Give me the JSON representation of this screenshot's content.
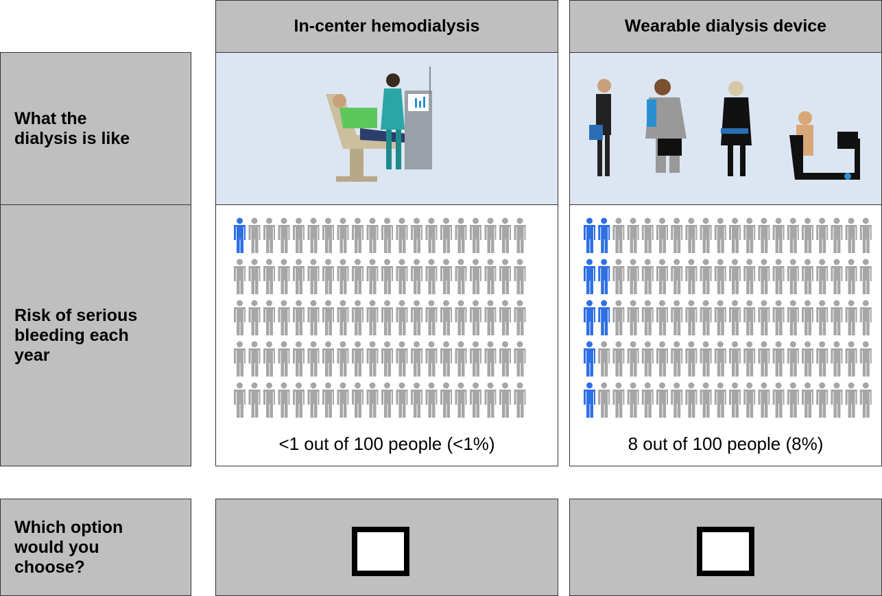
{
  "columns": [
    {
      "header": "In-center hemodialysis",
      "caption": "<1 out of 100 people (<1%)",
      "icon_array": {
        "total": 100,
        "highlighted": 1
      }
    },
    {
      "header": "Wearable dialysis device",
      "caption": "8 out of 100 people (8%)",
      "icon_array": {
        "total": 100,
        "highlighted": 8
      }
    }
  ],
  "rows": [
    {
      "label_lines": [
        "What the",
        "dialysis is like"
      ]
    },
    {
      "label_lines": [
        "Risk of serious",
        "bleeding each",
        "year"
      ]
    },
    {
      "label_lines": [
        "Which option",
        "would you",
        "choose?"
      ]
    }
  ]
}
